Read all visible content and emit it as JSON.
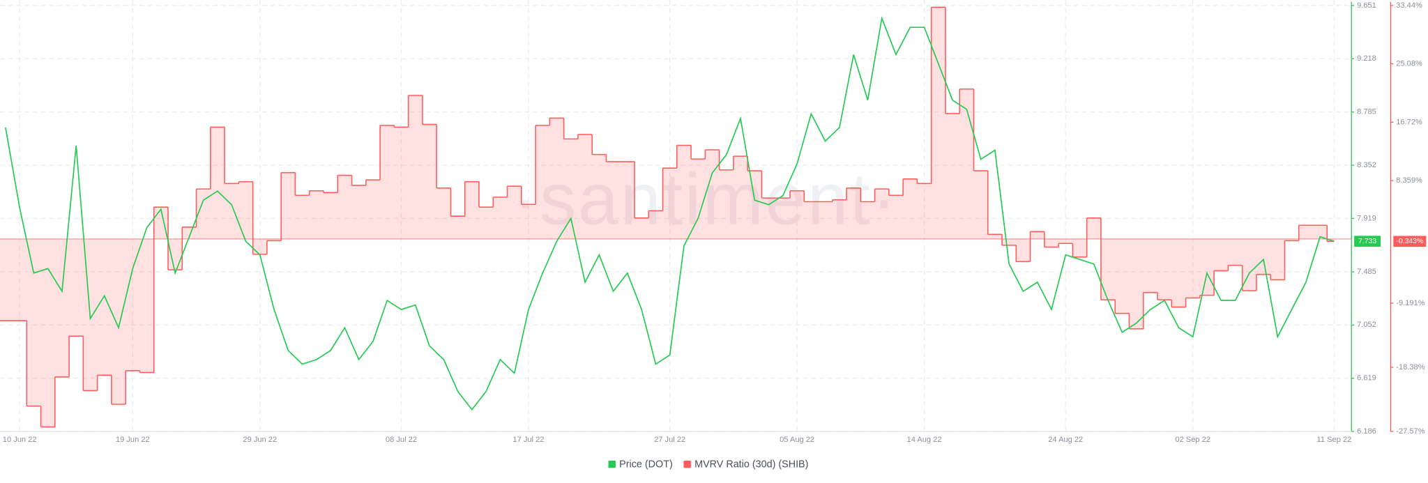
{
  "chart_data": {
    "type": "line",
    "watermark": "·santiment·",
    "categories": [
      null,
      "10 Jun 22",
      null,
      null,
      null,
      null,
      null,
      null,
      null,
      "19 Jun 22",
      null,
      null,
      null,
      null,
      null,
      null,
      null,
      null,
      "29 Jun 22",
      null,
      null,
      null,
      null,
      null,
      null,
      null,
      null,
      null,
      "08 Jul 22",
      null,
      null,
      null,
      null,
      null,
      null,
      null,
      null,
      "17 Jul 22",
      null,
      null,
      null,
      null,
      null,
      null,
      null,
      null,
      null,
      "27 Jul 22",
      null,
      null,
      null,
      null,
      null,
      null,
      null,
      null,
      "05 Aug 22",
      null,
      null,
      null,
      null,
      null,
      null,
      null,
      null,
      "14 Aug 22",
      null,
      null,
      null,
      null,
      null,
      null,
      null,
      null,
      null,
      "24 Aug 22",
      null,
      null,
      null,
      null,
      null,
      null,
      null,
      null,
      "02 Sep 22",
      null,
      null,
      null,
      null,
      null,
      null,
      null,
      null,
      null,
      "11 Sep 22"
    ],
    "series": [
      {
        "name": "Price (DOT)",
        "color": "#26c953",
        "value_tag": "7.733",
        "values": [
          8.659,
          8.007,
          7.474,
          7.511,
          7.326,
          8.511,
          7.104,
          7.289,
          7.03,
          7.511,
          7.844,
          7.993,
          7.474,
          7.77,
          8.067,
          8.141,
          8.03,
          7.733,
          7.622,
          7.178,
          6.845,
          6.734,
          6.771,
          6.845,
          7.03,
          6.771,
          6.919,
          7.252,
          7.178,
          7.215,
          6.882,
          6.771,
          6.512,
          6.364,
          6.512,
          6.771,
          6.66,
          7.178,
          7.474,
          7.733,
          7.919,
          7.4,
          7.622,
          7.326,
          7.474,
          7.178,
          6.734,
          6.808,
          7.696,
          7.919,
          8.289,
          8.437,
          8.733,
          8.067,
          8.03,
          8.104,
          8.363,
          8.77,
          8.548,
          8.659,
          9.251,
          8.881,
          9.547,
          9.251,
          9.473,
          9.473,
          9.177,
          8.881,
          8.807,
          8.4,
          8.474,
          7.548,
          7.326,
          7.4,
          7.178,
          7.622,
          7.585,
          7.548,
          7.252,
          6.993,
          7.067,
          7.178,
          7.252,
          7.03,
          6.956,
          7.474,
          7.252,
          7.252,
          7.474,
          7.585,
          6.956,
          7.178,
          7.4,
          7.77,
          7.733
        ]
      },
      {
        "name": "MVRV Ratio (30d) (SHIB)",
        "color": "#ff5b5b",
        "axis": "y2",
        "step": true,
        "value_tag": "-0.343%",
        "values": [
          -11.7,
          -11.7,
          -23.93,
          -26.92,
          -19.77,
          -13.91,
          -21.72,
          -19.51,
          -23.67,
          -18.86,
          -19.12,
          4.56,
          -4.42,
          1.7,
          7.16,
          16.01,
          7.94,
          8.2,
          -2.2,
          -0.25,
          9.5,
          6.25,
          6.9,
          6.64,
          9.11,
          7.68,
          8.46,
          16.27,
          16.01,
          20.56,
          16.4,
          7.29,
          3.26,
          8.2,
          4.56,
          5.99,
          7.55,
          4.95,
          16.27,
          17.31,
          14.32,
          14.97,
          12.1,
          11.07,
          11.07,
          3,
          4.04,
          10.15,
          13.41,
          11.45,
          12.76,
          9.89,
          11.85,
          9.76,
          5.86,
          5.86,
          6.9,
          5.34,
          5.34,
          5.6,
          7.29,
          5.34,
          7.16,
          6.25,
          8.59,
          7.94,
          33.18,
          17.96,
          21.47,
          9.76,
          0.66,
          -0.9,
          -3.24,
          1.05,
          -1.16,
          -0.64,
          -2.59,
          3,
          -8.71,
          -10.66,
          -12.87,
          -7.67,
          -8.71,
          -9.75,
          -8.45,
          -8.06,
          -4.55,
          -3.77,
          -7.41,
          -5.07,
          -5.85,
          -0.25,
          1.96,
          1.96,
          -0.343
        ]
      }
    ],
    "ylim": [
      6.186,
      9.651
    ],
    "yticks": [
      6.186,
      6.619,
      7.052,
      7.485,
      7.919,
      8.352,
      8.785,
      9.218,
      9.651
    ],
    "y2lim": [
      -27.57,
      33.44
    ],
    "y2ticks": [
      {
        "value": -27.57,
        "label": "-27.57%"
      },
      {
        "value": -18.38,
        "label": "-18.38%"
      },
      {
        "value": -9.191,
        "label": "-9.191%"
      },
      {
        "value": 8.359,
        "label": "8.359%"
      },
      {
        "value": 16.72,
        "label": "16.72%"
      },
      {
        "value": 25.08,
        "label": "25.08%"
      },
      {
        "value": 33.44,
        "label": "33.44%"
      }
    ],
    "grid": true,
    "legend": "bottom"
  }
}
